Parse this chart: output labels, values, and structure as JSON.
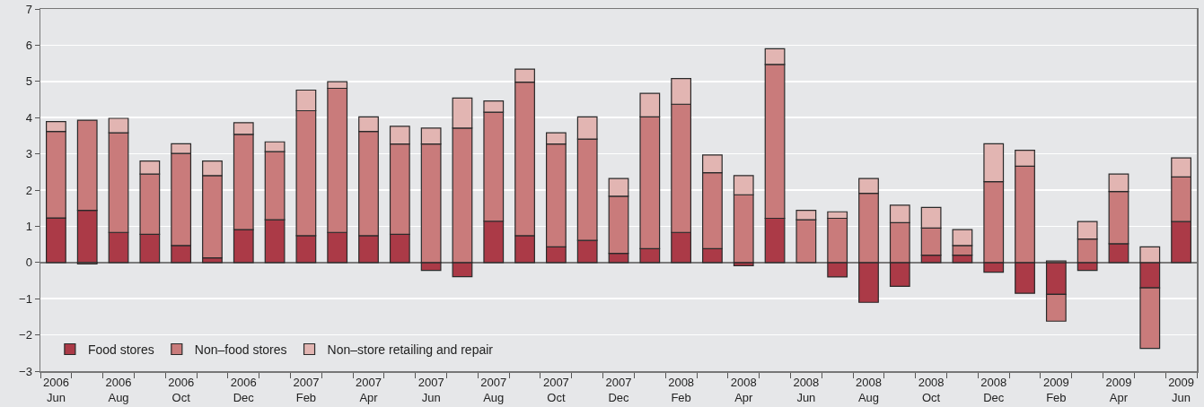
{
  "chart_data": {
    "type": "bar",
    "stacked": true,
    "categories": [
      "2006\nJun",
      null,
      "2006\nAug",
      null,
      "2006\nOct",
      null,
      "2006\nDec",
      null,
      "2007\nFeb",
      null,
      "2007\nApr",
      null,
      "2007\nJun",
      null,
      "2007\nAug",
      null,
      "2007\nOct",
      null,
      "2007\nDec",
      null,
      "2008\nFeb",
      null,
      "2008\nApr",
      null,
      "2008\nJun",
      null,
      "2008\nAug",
      null,
      "2008\nOct",
      null,
      "2008\nDec",
      null,
      "2009\nFeb",
      null,
      "2009\nApr",
      null,
      "2009\nJun"
    ],
    "series": [
      {
        "name": "Food stores",
        "color": "#ab3a47",
        "values": [
          1.23,
          1.44,
          0.83,
          0.78,
          0.47,
          0.13,
          0.91,
          1.18,
          0.74,
          0.83,
          0.74,
          0.78,
          -0.22,
          -0.39,
          1.14,
          0.74,
          0.43,
          0.61,
          0.25,
          0.38,
          0.83,
          0.38,
          -0.09,
          1.22,
          null,
          -0.4,
          -1.1,
          -0.66,
          0.2,
          0.2,
          -0.27,
          -0.85,
          -0.88,
          -0.22,
          0.52,
          -0.7,
          1.13
        ]
      },
      {
        "name": "Non–food stores",
        "color": "#c97b7b",
        "values": [
          2.39,
          2.49,
          2.75,
          1.66,
          2.54,
          2.27,
          2.63,
          1.88,
          3.45,
          3.98,
          2.88,
          2.49,
          3.27,
          3.71,
          3.01,
          4.24,
          2.84,
          2.8,
          1.58,
          3.64,
          3.54,
          2.1,
          1.87,
          4.25,
          1.18,
          1.22,
          1.91,
          1.1,
          0.75,
          0.27,
          2.23,
          2.66,
          -0.74,
          0.65,
          1.44,
          -1.67,
          1.23
        ]
      },
      {
        "name": "Non–store retailing and repair",
        "color": "#e2b5b2",
        "values": [
          0.27,
          -0.04,
          0.4,
          0.36,
          0.27,
          0.4,
          0.32,
          0.27,
          0.57,
          0.18,
          0.4,
          0.49,
          0.44,
          0.83,
          0.31,
          0.36,
          0.31,
          0.61,
          0.49,
          0.65,
          0.71,
          0.49,
          0.53,
          0.43,
          0.26,
          0.18,
          0.41,
          0.48,
          0.57,
          0.44,
          1.05,
          0.44,
          0.04,
          0.48,
          0.48,
          0.43,
          0.53
        ]
      }
    ],
    "ylim": [
      -3,
      7
    ],
    "yticks": [
      {
        "value": -3,
        "label": "−3"
      },
      {
        "value": -2,
        "label": "−2"
      },
      {
        "value": -1,
        "label": "−1"
      },
      0,
      1,
      2,
      3,
      4,
      5,
      6,
      7
    ],
    "grid": "y",
    "legend": "bottom left"
  }
}
